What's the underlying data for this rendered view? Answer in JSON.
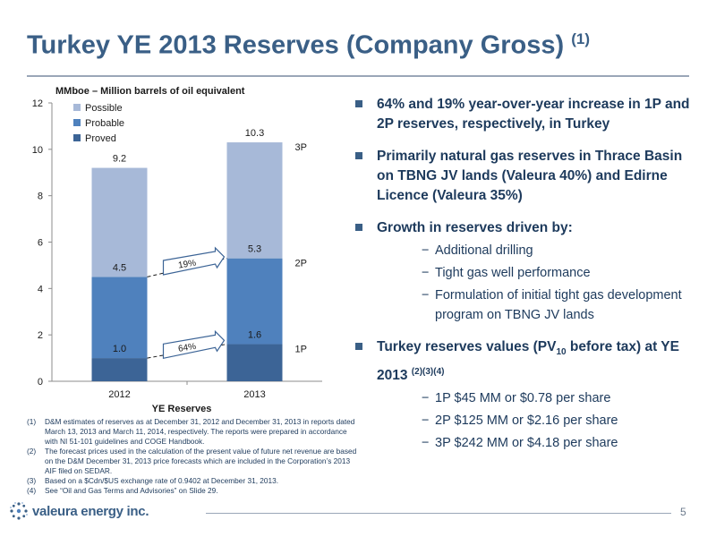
{
  "title": {
    "text": "Turkey YE 2013 Reserves (Company Gross)",
    "superscript": "(1)"
  },
  "chart_data": {
    "type": "bar",
    "stacked": true,
    "subtitle": "MMboe – Million barrels of oil equivalent",
    "xlabel": "YE Reserves",
    "categories": [
      "2012",
      "2013"
    ],
    "ylim": [
      0,
      12
    ],
    "yticks": [
      0,
      2,
      4,
      6,
      8,
      10,
      12
    ],
    "grid": false,
    "legend_position": "top-left",
    "series": [
      {
        "name": "Proved",
        "values": [
          1.0,
          1.6
        ],
        "color": "#3c6496"
      },
      {
        "name": "Probable",
        "values": [
          3.5,
          3.7
        ],
        "color": "#4f81bd"
      },
      {
        "name": "Possible",
        "values": [
          4.7,
          5.0
        ],
        "color": "#a7b9d8"
      }
    ],
    "cumulative_labels": [
      {
        "level": "1P",
        "values": [
          "1.0",
          "1.6"
        ]
      },
      {
        "level": "2P",
        "values": [
          "4.5",
          "5.3"
        ]
      },
      {
        "level": "3P",
        "values": [
          "9.2",
          "10.3"
        ]
      }
    ],
    "level_labels": [
      "1P",
      "2P",
      "3P"
    ],
    "growth_annotations": [
      {
        "text": "64%",
        "from": 1.0,
        "to": 1.6
      },
      {
        "text": "19%",
        "from": 4.5,
        "to": 5.3
      }
    ]
  },
  "bullets": [
    {
      "text": "64% and 19% year-over-year increase in 1P and 2P reserves, respectively, in Turkey",
      "subs": []
    },
    {
      "text": "Primarily natural gas reserves in Thrace Basin on TBNG JV lands (Valeura 40%) and Edirne Licence (Valeura 35%)",
      "subs": []
    },
    {
      "text": "Growth in reserves driven by:",
      "subs": [
        "Additional drilling",
        "Tight gas well performance",
        "Formulation of initial tight gas development program on TBNG JV lands"
      ]
    }
  ],
  "pv_bullet": {
    "prefix": "Turkey reserves values (PV",
    "subscript": "10",
    "suffix": " before tax) at YE 2013 ",
    "superscript": "(2)(3)(4)",
    "subs": [
      "1P $45 MM or $0.78 per share",
      "2P $125 MM or $2.16 per share",
      "3P $242 MM or $4.18 per share"
    ]
  },
  "sub_marker": "−",
  "footnotes": [
    {
      "num": "(1)",
      "text": "D&M estimates of reserves as at December 31, 2012 and December 31, 2013 in reports dated March 13, 2013 and March 11, 2014, respectively. The reports were prepared in accordance with NI 51-101 guidelines and COGE Handbook."
    },
    {
      "num": "(2)",
      "text": "The forecast prices used in the calculation of the present value of future net revenue are based on the D&M December 31, 2013 price forecasts which are included in the Corporation’s 2013 AIF filed on SEDAR."
    },
    {
      "num": "(3)",
      "text": "Based on a $Cdn/$US exchange rate of 0.9402 at December 31, 2013."
    },
    {
      "num": "(4)",
      "text": "See “Oil and Gas Terms and Advisories” on Slide 29."
    }
  ],
  "footer": {
    "logo_text": "valeura energy inc.",
    "page_number": "5"
  }
}
